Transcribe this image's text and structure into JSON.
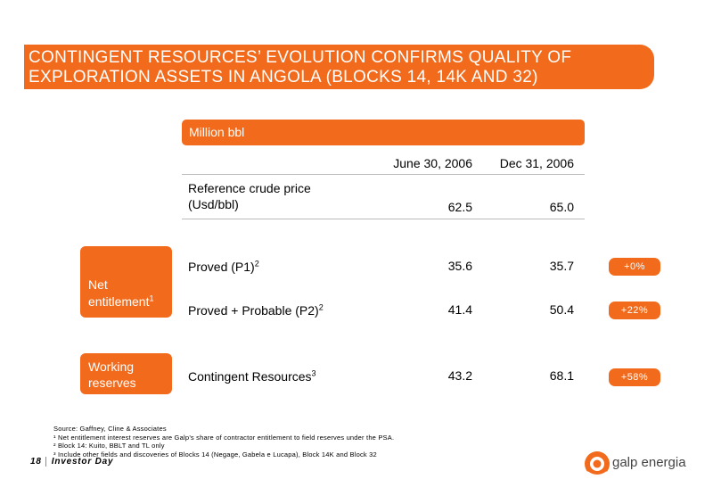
{
  "slide": {
    "title": "CONTINGENT RESOURCES’ EVOLUTION CONFIRMS QUALITY OF\nEXPLORATION ASSETS IN ANGOLA (BLOCKS 14, 14K AND 32)"
  },
  "table": {
    "unit": "Million bbl",
    "columns": [
      "June 30, 2006",
      "Dec 31, 2006"
    ],
    "reference": {
      "label_line1": "Reference crude price",
      "label_line2": "(Usd/bbl)",
      "values": [
        "62.5",
        "65.0"
      ]
    },
    "rows": [
      {
        "label": "Proved (P1)",
        "sup": "2",
        "values": [
          "35.6",
          "35.7"
        ],
        "change": "+0%"
      },
      {
        "label": "Proved + Probable (P2)",
        "sup": "2",
        "values": [
          "41.4",
          "50.4"
        ],
        "change": "+22%"
      },
      {
        "label": "Contingent Resources",
        "sup": "3",
        "values": [
          "43.2",
          "68.1"
        ],
        "change": "+58%"
      }
    ]
  },
  "groups": {
    "net": {
      "line1": "Net",
      "line2": "entitlement",
      "sup": "1"
    },
    "working": {
      "line1": "Working",
      "line2": "reserves"
    }
  },
  "notes": {
    "source": "Source: Gaffney, Cline & Associates",
    "n1": "¹ Net entitlement interest reserves are Galp’s share of contractor entitlement to field reserves under the PSA.",
    "n2": "² Block 14: Kuito, BBLT and TL only",
    "n3": "³ Include other fields and discoveries of Blocks 14 (Negage, Gabela e Lucapa), Block 14K and Block 32"
  },
  "footer": {
    "page": "18",
    "label": "Investor Day"
  },
  "logo": {
    "text": "galp energia"
  },
  "colors": {
    "accent": "#f26a1b"
  }
}
